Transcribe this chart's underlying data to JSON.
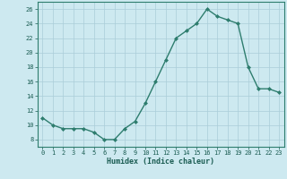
{
  "x": [
    0,
    1,
    2,
    3,
    4,
    5,
    6,
    7,
    8,
    9,
    10,
    11,
    12,
    13,
    14,
    15,
    16,
    17,
    18,
    19,
    20,
    21,
    22,
    23
  ],
  "y": [
    11,
    10,
    9.5,
    9.5,
    9.5,
    9,
    8,
    8,
    9.5,
    10.5,
    13,
    16,
    19,
    22,
    23,
    24,
    26,
    25,
    24.5,
    24,
    18,
    15,
    15,
    14.5
  ],
  "xlabel": "Humidex (Indice chaleur)",
  "xlim": [
    -0.5,
    23.5
  ],
  "ylim": [
    7,
    27
  ],
  "yticks": [
    8,
    10,
    12,
    14,
    16,
    18,
    20,
    22,
    24,
    26
  ],
  "xticks": [
    0,
    1,
    2,
    3,
    4,
    5,
    6,
    7,
    8,
    9,
    10,
    11,
    12,
    13,
    14,
    15,
    16,
    17,
    18,
    19,
    20,
    21,
    22,
    23
  ],
  "line_color": "#2e7d6e",
  "marker_color": "#2e7d6e",
  "bg_color": "#cde9f0",
  "grid_color": "#aacdd8",
  "axis_color": "#2e7d6e",
  "text_color": "#1a5c52",
  "font_family": "monospace",
  "tick_fontsize": 5.0,
  "xlabel_fontsize": 6.0,
  "linewidth": 1.0,
  "markersize": 2.0
}
